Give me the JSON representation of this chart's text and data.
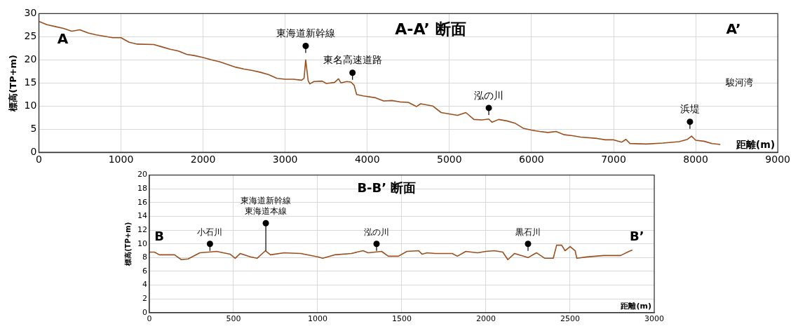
{
  "chart_data": [
    {
      "type": "line",
      "title": "A-A’ 断面",
      "xlabel": "距離(m)",
      "ylabel": "標高(TP+m)",
      "xlim": [
        0,
        9000
      ],
      "xticks": [
        0,
        1000,
        2000,
        3000,
        4000,
        5000,
        6000,
        7000,
        8000,
        9000
      ],
      "ylim": [
        0,
        30
      ],
      "yticks": [
        0,
        5,
        10,
        15,
        20,
        25,
        30
      ],
      "grid": true,
      "marker": "none",
      "line_style": "solid",
      "series": [
        {
          "color": "#9c4f1e",
          "x": [
            0,
            100,
            200,
            300,
            400,
            500,
            600,
            700,
            800,
            900,
            1000,
            1100,
            1200,
            1400,
            1500,
            1600,
            1700,
            1800,
            1900,
            2000,
            2100,
            2200,
            2300,
            2400,
            2500,
            2600,
            2700,
            2800,
            2900,
            3000,
            3100,
            3200,
            3230,
            3250,
            3280,
            3300,
            3350,
            3450,
            3500,
            3600,
            3650,
            3680,
            3750,
            3800,
            3840,
            3870,
            3950,
            4100,
            4200,
            4300,
            4400,
            4500,
            4600,
            4650,
            4800,
            4900,
            5000,
            5100,
            5200,
            5300,
            5400,
            5480,
            5520,
            5600,
            5700,
            5800,
            5900,
            6000,
            6100,
            6200,
            6300,
            6400,
            6500,
            6600,
            6800,
            6900,
            7000,
            7100,
            7150,
            7200,
            7400,
            7600,
            7800,
            7900,
            7950,
            8000,
            8100,
            8200,
            8300
          ],
          "values": [
            28.3,
            27.6,
            27.2,
            26.8,
            26.2,
            26.5,
            25.8,
            25.4,
            25.1,
            24.8,
            24.8,
            23.8,
            23.4,
            23.3,
            22.8,
            22.3,
            21.9,
            21.2,
            20.9,
            20.5,
            20.0,
            19.6,
            19.0,
            18.4,
            18.0,
            17.7,
            17.3,
            16.8,
            16.0,
            15.8,
            15.8,
            15.6,
            16.0,
            20.0,
            15.5,
            14.8,
            15.3,
            15.4,
            14.9,
            15.1,
            15.9,
            15.0,
            15.3,
            15.2,
            14.5,
            12.5,
            12.2,
            11.8,
            11.1,
            11.2,
            10.9,
            10.8,
            9.9,
            10.5,
            10.0,
            8.6,
            8.3,
            8.0,
            8.6,
            7.1,
            7.0,
            7.2,
            6.5,
            7.1,
            6.8,
            6.3,
            5.2,
            4.8,
            4.5,
            4.3,
            4.5,
            3.8,
            3.6,
            3.3,
            3.0,
            2.7,
            2.7,
            2.2,
            2.8,
            1.9,
            1.8,
            2.0,
            2.3,
            2.8,
            3.5,
            2.6,
            2.4,
            1.9,
            1.7
          ]
        }
      ],
      "annotations": [
        "A",
        "A’",
        "駿河湾",
        {
          "text": "東海道新幹線",
          "x": 3250,
          "y": 23
        },
        {
          "text": "東名高速道路",
          "x": 3820,
          "y": 17.2
        },
        {
          "text": "泓の川",
          "x": 5480,
          "y": 9.6
        },
        {
          "text": "浜堤",
          "x": 7930,
          "y": 6.6
        }
      ]
    },
    {
      "type": "line",
      "title": "B-B’ 断面",
      "xlabel": "距離(m)",
      "ylabel": "標高(TP+m)",
      "xlim": [
        0,
        3000
      ],
      "xticks": [
        0,
        500,
        1000,
        1500,
        2000,
        2500,
        3000
      ],
      "ylim": [
        0,
        20
      ],
      "yticks": [
        0,
        2,
        4,
        6,
        8,
        10,
        12,
        14,
        16,
        18,
        20
      ],
      "grid": true,
      "marker": "none",
      "line_style": "solid",
      "series": [
        {
          "color": "#9c4f1e",
          "x": [
            0,
            30,
            60,
            150,
            190,
            230,
            300,
            400,
            480,
            510,
            540,
            600,
            640,
            690,
            720,
            800,
            900,
            1000,
            1030,
            1100,
            1200,
            1270,
            1300,
            1380,
            1420,
            1480,
            1530,
            1600,
            1620,
            1650,
            1700,
            1800,
            1830,
            1880,
            1950,
            2000,
            2050,
            2100,
            2130,
            2170,
            2250,
            2300,
            2350,
            2400,
            2420,
            2450,
            2470,
            2500,
            2530,
            2540,
            2600,
            2700,
            2800,
            2850,
            2870
          ],
          "values": [
            8.8,
            8.8,
            8.4,
            8.4,
            7.7,
            7.8,
            8.7,
            8.9,
            8.5,
            7.9,
            8.6,
            8.1,
            7.9,
            9.0,
            8.4,
            8.7,
            8.6,
            8.1,
            7.9,
            8.4,
            8.6,
            9.0,
            8.7,
            8.9,
            8.2,
            8.2,
            8.9,
            9.0,
            8.5,
            8.7,
            8.6,
            8.6,
            8.2,
            8.9,
            8.7,
            8.9,
            9.0,
            8.8,
            7.7,
            8.6,
            8.0,
            8.7,
            7.9,
            7.9,
            9.8,
            9.8,
            9.0,
            9.6,
            9.0,
            7.9,
            8.1,
            8.3,
            8.3,
            8.9,
            9.1
          ]
        }
      ],
      "annotations": [
        "B",
        "B’",
        {
          "text": "小石川",
          "x": 360,
          "y": 10
        },
        {
          "text": "東海道新幹線",
          "x": 692,
          "y": 13
        },
        {
          "text": "東海道本線",
          "x": 692,
          "y": 9
        },
        {
          "text": "泓の川",
          "x": 1350,
          "y": 10
        },
        {
          "text": "黒石川",
          "x": 2250,
          "y": 10
        }
      ]
    }
  ]
}
